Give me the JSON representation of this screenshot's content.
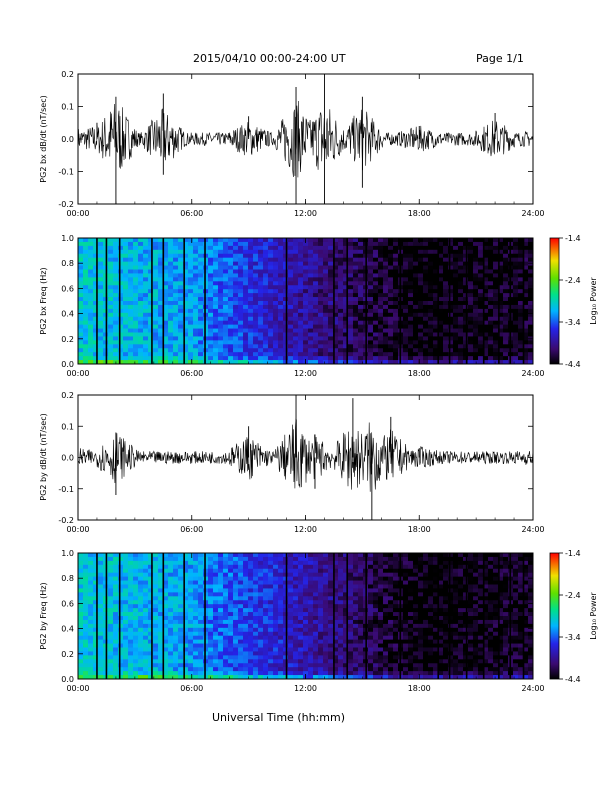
{
  "header": {
    "title": "2015/04/10  00:00-24:00 UT",
    "page": "Page 1/1"
  },
  "xlabel": "Universal Time (hh:mm)",
  "colorbar": {
    "label": "Log₁₀ Power",
    "ticks": [
      "-1.4",
      "-2.4",
      "-3.4",
      "-4.4"
    ]
  },
  "chart_data": [
    {
      "type": "line",
      "ylabel": "PG2 bx dB/dt (nT/sec)",
      "xlim": [
        "00:00",
        "24:00"
      ],
      "ylim": [
        -0.2,
        0.2
      ],
      "xticks": [
        "00:00",
        "06:00",
        "12:00",
        "18:00",
        "24:00"
      ],
      "yticks": [
        "0.2",
        "0.1",
        "0.0",
        "-0.1",
        "-0.2"
      ],
      "series": [
        {
          "values": [
            {
              "x": "00:00",
              "y": 0.03
            },
            {
              "x": "01:00",
              "y": 0.05
            },
            {
              "x": "02:00",
              "y": 0.13
            },
            {
              "x": "02:00",
              "y": -0.2
            },
            {
              "x": "04:30",
              "y": 0.14
            },
            {
              "x": "04:30",
              "y": -0.11
            },
            {
              "x": "09:00",
              "y": 0.07
            },
            {
              "x": "11:30",
              "y": 0.16
            },
            {
              "x": "11:30",
              "y": -0.2
            },
            {
              "x": "13:00",
              "y": 0.2
            },
            {
              "x": "13:00",
              "y": -0.2
            },
            {
              "x": "15:00",
              "y": 0.13
            },
            {
              "x": "15:00",
              "y": -0.15
            },
            {
              "x": "18:00",
              "y": 0.04
            },
            {
              "x": "22:00",
              "y": 0.08
            },
            {
              "x": "24:00",
              "y": 0.01
            }
          ]
        }
      ]
    },
    {
      "type": "heatmap",
      "ylabel": "PG2 bx Freq (Hz)",
      "xlim": [
        "00:00",
        "24:00"
      ],
      "ylim": [
        0.0,
        1.0
      ],
      "xticks": [
        "00:00",
        "06:00",
        "12:00",
        "18:00",
        "24:00"
      ],
      "yticks": [
        "1.0",
        "0.8",
        "0.6",
        "0.4",
        "0.2",
        "0.0"
      ],
      "colorbar_range": [
        -4.4,
        -1.4
      ],
      "dominant_log_power_by_time": [
        {
          "x": "00:00",
          "value": -3.0
        },
        {
          "x": "06:00",
          "value": -3.2
        },
        {
          "x": "12:00",
          "value": -3.9
        },
        {
          "x": "18:00",
          "value": -4.4
        },
        {
          "x": "24:00",
          "value": -4.3
        }
      ]
    },
    {
      "type": "line",
      "ylabel": "PG2 by dB/dt (nT/sec)",
      "xlim": [
        "00:00",
        "24:00"
      ],
      "ylim": [
        -0.2,
        0.2
      ],
      "xticks": [
        "00:00",
        "06:00",
        "12:00",
        "18:00",
        "24:00"
      ],
      "yticks": [
        "0.2",
        "0.1",
        "0.0",
        "-0.1",
        "-0.2"
      ],
      "series": [
        {
          "values": [
            {
              "x": "00:00",
              "y": 0.02
            },
            {
              "x": "02:00",
              "y": 0.08
            },
            {
              "x": "02:00",
              "y": -0.12
            },
            {
              "x": "09:00",
              "y": 0.1
            },
            {
              "x": "11:30",
              "y": 0.2
            },
            {
              "x": "12:30",
              "y": -0.1
            },
            {
              "x": "14:30",
              "y": 0.19
            },
            {
              "x": "15:30",
              "y": -0.2
            },
            {
              "x": "16:30",
              "y": 0.13
            },
            {
              "x": "18:00",
              "y": 0.03
            },
            {
              "x": "24:00",
              "y": 0.01
            }
          ]
        }
      ]
    },
    {
      "type": "heatmap",
      "ylabel": "PG2 by Freq (Hz)",
      "xlim": [
        "00:00",
        "24:00"
      ],
      "ylim": [
        0.0,
        1.0
      ],
      "xticks": [
        "00:00",
        "06:00",
        "12:00",
        "18:00",
        "24:00"
      ],
      "yticks": [
        "1.0",
        "0.8",
        "0.6",
        "0.4",
        "0.2",
        "0.0"
      ],
      "colorbar_range": [
        -4.4,
        -1.4
      ],
      "dominant_log_power_by_time": [
        {
          "x": "00:00",
          "value": -3.0
        },
        {
          "x": "06:00",
          "value": -3.2
        },
        {
          "x": "12:00",
          "value": -3.8
        },
        {
          "x": "18:00",
          "value": -4.4
        },
        {
          "x": "24:00",
          "value": -4.3
        }
      ]
    }
  ]
}
